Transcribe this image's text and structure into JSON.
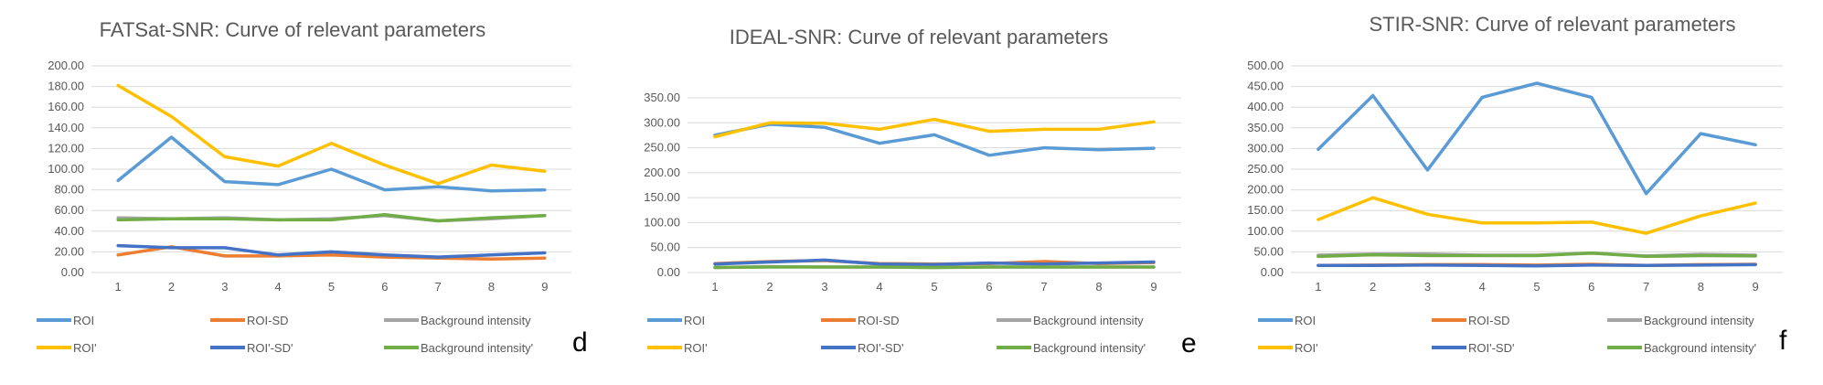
{
  "chart_data": [
    {
      "type": "line",
      "title": "FATSat-SNR: Curve of relevant parameters",
      "panel_letter": "d",
      "categories": [
        "1",
        "2",
        "3",
        "4",
        "5",
        "6",
        "7",
        "8",
        "9"
      ],
      "ylim": [
        0,
        200
      ],
      "yticks": [
        "0.00",
        "20.00",
        "40.00",
        "60.00",
        "80.00",
        "100.00",
        "120.00",
        "140.00",
        "160.00",
        "180.00",
        "200.00"
      ],
      "xlabel": "",
      "ylabel": "",
      "grid": true,
      "legend_position": "bottom",
      "series": [
        {
          "name": "ROI",
          "color": "#5b9bd5",
          "values": [
            89,
            131,
            88,
            85,
            100,
            80,
            83,
            79,
            80
          ]
        },
        {
          "name": "ROI-SD",
          "color": "#ed7d31",
          "values": [
            17,
            25,
            16,
            16,
            17,
            15,
            14,
            13,
            14
          ]
        },
        {
          "name": "Background intensity",
          "color": "#a5a5a5",
          "values": [
            53,
            52,
            53,
            51,
            52,
            55,
            50,
            52,
            55
          ]
        },
        {
          "name": "ROI'",
          "color": "#ffc000",
          "values": [
            181,
            151,
            112,
            103,
            125,
            104,
            86,
            104,
            98
          ]
        },
        {
          "name": "ROI'-SD'",
          "color": "#4472c4",
          "values": [
            26,
            24,
            24,
            17,
            20,
            17,
            15,
            17,
            19
          ]
        },
        {
          "name": "Background intensity'",
          "color": "#70ad47",
          "values": [
            51,
            52,
            52,
            51,
            51,
            56,
            50,
            53,
            55
          ]
        }
      ]
    },
    {
      "type": "line",
      "title": "IDEAL-SNR: Curve of relevant parameters",
      "panel_letter": "e",
      "categories": [
        "1",
        "2",
        "3",
        "4",
        "5",
        "6",
        "7",
        "8",
        "9"
      ],
      "ylim": [
        0,
        350
      ],
      "yticks": [
        "0.00",
        "50.00",
        "100.00",
        "150.00",
        "200.00",
        "250.00",
        "300.00",
        "350.00"
      ],
      "xlabel": "",
      "ylabel": "",
      "grid": true,
      "legend_position": "bottom",
      "series": [
        {
          "name": "ROI",
          "color": "#5b9bd5",
          "values": [
            275,
            297,
            291,
            259,
            276,
            235,
            250,
            246,
            249
          ]
        },
        {
          "name": "ROI-SD",
          "color": "#ed7d31",
          "values": [
            18,
            22,
            24,
            18,
            17,
            18,
            22,
            18,
            20
          ]
        },
        {
          "name": "Background intensity",
          "color": "#a5a5a5",
          "values": [
            10,
            12,
            11,
            11,
            10,
            11,
            11,
            11,
            11
          ]
        },
        {
          "name": "ROI'",
          "color": "#ffc000",
          "values": [
            272,
            300,
            299,
            287,
            307,
            283,
            287,
            287,
            302
          ]
        },
        {
          "name": "ROI'-SD'",
          "color": "#4472c4",
          "values": [
            17,
            21,
            25,
            17,
            16,
            19,
            17,
            19,
            21
          ]
        },
        {
          "name": "Background intensity'",
          "color": "#70ad47",
          "values": [
            10,
            11,
            11,
            11,
            10,
            11,
            11,
            11,
            11
          ]
        }
      ]
    },
    {
      "type": "line",
      "title": "STIR-SNR: Curve of relevant parameters",
      "panel_letter": "f",
      "categories": [
        "1",
        "2",
        "3",
        "4",
        "5",
        "6",
        "7",
        "8",
        "9"
      ],
      "ylim": [
        0,
        500
      ],
      "yticks": [
        "0.00",
        "50.00",
        "100.00",
        "150.00",
        "200.00",
        "250.00",
        "300.00",
        "350.00",
        "400.00",
        "450.00",
        "500.00"
      ],
      "xlabel": "",
      "ylabel": "",
      "grid": true,
      "legend_position": "bottom",
      "series": [
        {
          "name": "ROI",
          "color": "#5b9bd5",
          "values": [
            298,
            428,
            248,
            424,
            458,
            424,
            191,
            336,
            309
          ]
        },
        {
          "name": "ROI-SD",
          "color": "#ed7d31",
          "values": [
            17,
            18,
            19,
            19,
            18,
            20,
            17,
            19,
            20
          ]
        },
        {
          "name": "Background intensity",
          "color": "#a5a5a5",
          "values": [
            42,
            45,
            45,
            42,
            42,
            47,
            40,
            44,
            42
          ]
        },
        {
          "name": "ROI'",
          "color": "#ffc000",
          "values": [
            128,
            181,
            141,
            120,
            120,
            122,
            95,
            137,
            168
          ]
        },
        {
          "name": "ROI'-SD'",
          "color": "#4472c4",
          "values": [
            17,
            17,
            18,
            17,
            16,
            18,
            17,
            18,
            19
          ]
        },
        {
          "name": "Background intensity'",
          "color": "#70ad47",
          "values": [
            39,
            43,
            41,
            41,
            41,
            47,
            39,
            41,
            40
          ]
        }
      ]
    }
  ]
}
